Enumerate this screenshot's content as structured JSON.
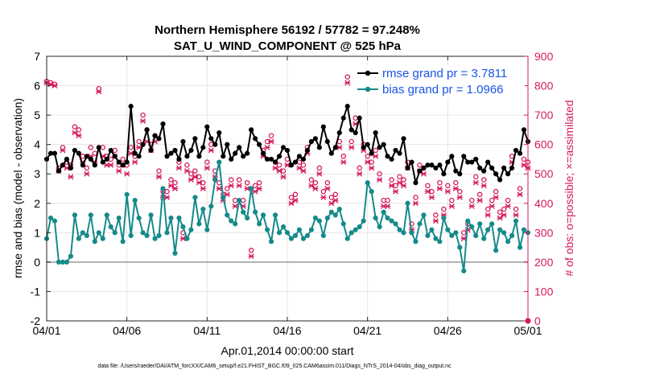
{
  "chart_data": {
    "type": "line",
    "title": "Northern Hemisphere 56192 / 57782 = 97.248%",
    "subtitle": "SAT_U_WIND_COMPONENT @ 525 hPa",
    "xlabel": "Apr.01,2014 00:00:00 start",
    "ylabel": "rmse and bias (model - observation)",
    "ylabel_right": "# of obs: o=possible; ×=assimilated",
    "footnote": "data file: /Users/raeder/DAI/ATM_forcXX/CAM6_setup/f.e21.FHIST_BGC.f09_025.CAM6assim.011/Diags_NTrS_2014-04/obs_diag_output.nc",
    "xlim": [
      0,
      30
    ],
    "ylim": [
      -2,
      7
    ],
    "ylim_right": [
      0,
      900
    ],
    "x_ticks": [
      0,
      5,
      10,
      15,
      20,
      25,
      30
    ],
    "x_tick_labels": [
      "04/01",
      "04/06",
      "04/11",
      "04/16",
      "04/21",
      "04/26",
      "05/01"
    ],
    "y_ticks": [
      -2,
      -1,
      0,
      1,
      2,
      3,
      4,
      5,
      6,
      7
    ],
    "y_tick_labels": [
      "-2",
      "-1",
      "0",
      "1",
      "2",
      "3",
      "4",
      "5",
      "6",
      "7"
    ],
    "y_ticks_right": [
      0,
      100,
      200,
      300,
      400,
      500,
      600,
      700,
      800,
      900
    ],
    "y_tick_labels_right": [
      "0",
      "100",
      "200",
      "300",
      "400",
      "500",
      "600",
      "700",
      "800",
      "900"
    ],
    "grid": true,
    "legend_position": "top-right",
    "colors": {
      "rmse": "#000000",
      "bias": "#168a8a",
      "obs": "#d6195e",
      "zero_line": "#b0b0b0",
      "legend_text": "#1a54e6"
    },
    "x": [
      0.0,
      0.25,
      0.5,
      0.75,
      1.0,
      1.25,
      1.5,
      1.75,
      2.0,
      2.25,
      2.5,
      2.75,
      3.0,
      3.25,
      3.5,
      3.75,
      4.0,
      4.25,
      4.5,
      4.75,
      5.0,
      5.25,
      5.5,
      5.75,
      6.0,
      6.25,
      6.5,
      6.75,
      7.0,
      7.25,
      7.5,
      7.75,
      8.0,
      8.25,
      8.5,
      8.75,
      9.0,
      9.25,
      9.5,
      9.75,
      10.0,
      10.25,
      10.5,
      10.75,
      11.0,
      11.25,
      11.5,
      11.75,
      12.0,
      12.25,
      12.5,
      12.75,
      13.0,
      13.25,
      13.5,
      13.75,
      14.0,
      14.25,
      14.5,
      14.75,
      15.0,
      15.25,
      15.5,
      15.75,
      16.0,
      16.25,
      16.5,
      16.75,
      17.0,
      17.25,
      17.5,
      17.75,
      18.0,
      18.25,
      18.5,
      18.75,
      19.0,
      19.25,
      19.5,
      19.75,
      20.0,
      20.25,
      20.5,
      20.75,
      21.0,
      21.25,
      21.5,
      21.75,
      22.0,
      22.25,
      22.5,
      22.75,
      23.0,
      23.25,
      23.5,
      23.75,
      24.0,
      24.25,
      24.5,
      24.75,
      25.0,
      25.25,
      25.5,
      25.75,
      26.0,
      26.25,
      26.5,
      26.75,
      27.0,
      27.25,
      27.5,
      27.75,
      28.0,
      28.25,
      28.5,
      28.75,
      29.0,
      29.25,
      29.5,
      29.75,
      30.0
    ],
    "series": [
      {
        "name": "rmse grand pr = 3.7811",
        "marker": "circle",
        "values": [
          3.5,
          3.7,
          3.7,
          3.1,
          3.3,
          3.5,
          3.2,
          3.8,
          3.7,
          3.3,
          3.6,
          3.5,
          3.3,
          3.9,
          3.4,
          3.5,
          3.8,
          3.6,
          3.4,
          3.3,
          3.4,
          5.3,
          3.7,
          3.6,
          4.0,
          4.5,
          3.8,
          4.3,
          4.2,
          4.7,
          3.6,
          3.7,
          3.8,
          3.5,
          4.1,
          3.6,
          3.8,
          4.2,
          3.6,
          3.9,
          4.6,
          4.2,
          4.0,
          4.4,
          3.6,
          4.0,
          3.5,
          3.7,
          3.9,
          3.6,
          3.7,
          4.5,
          4.2,
          4.0,
          3.7,
          3.5,
          3.5,
          3.4,
          3.6,
          3.9,
          3.8,
          3.3,
          3.4,
          3.6,
          3.5,
          3.8,
          4.1,
          4.2,
          3.9,
          4.6,
          4.1,
          3.7,
          3.9,
          4.4,
          4.9,
          5.3,
          4.5,
          4.4,
          4.9,
          3.9,
          4.0,
          3.7,
          4.4,
          3.9,
          4.0,
          3.6,
          3.5,
          3.8,
          3.7,
          4.2,
          3.2,
          3.4,
          2.7,
          3.1,
          3.2,
          3.3,
          3.3,
          3.2,
          3.3,
          3.0,
          3.4,
          3.6,
          3.1,
          3.0,
          3.6,
          3.4,
          3.4,
          3.5,
          3.2,
          3.1,
          3.4,
          3.2,
          3.0,
          2.8,
          3.2,
          3.0,
          3.2,
          3.8,
          3.7,
          4.5,
          4.1
        ]
      },
      {
        "name": "bias grand pr = 1.0966",
        "marker": "circle",
        "values": [
          0.8,
          1.5,
          1.4,
          0.0,
          0.0,
          0.0,
          0.2,
          1.6,
          0.8,
          1.0,
          0.9,
          1.6,
          0.7,
          1.0,
          0.8,
          1.6,
          1.2,
          1.0,
          1.5,
          0.7,
          2.3,
          0.9,
          2.1,
          1.5,
          1.0,
          0.9,
          1.6,
          0.8,
          0.9,
          2.5,
          1.0,
          1.5,
          0.3,
          1.5,
          1.2,
          0.8,
          1.1,
          2.2,
          1.3,
          1.8,
          1.1,
          1.9,
          2.8,
          3.4,
          2.2,
          1.6,
          1.4,
          1.3,
          2.1,
          1.7,
          1.5,
          2.5,
          1.7,
          1.3,
          1.6,
          1.1,
          0.7,
          1.6,
          1.0,
          1.2,
          1.0,
          0.8,
          0.9,
          1.1,
          0.8,
          0.9,
          1.1,
          1.5,
          1.4,
          0.9,
          1.5,
          1.7,
          1.6,
          1.8,
          1.3,
          0.8,
          1.0,
          1.1,
          1.2,
          1.4,
          2.7,
          2.4,
          1.5,
          1.2,
          1.7,
          1.5,
          1.4,
          1.3,
          1.1,
          1.0,
          2.0,
          1.0,
          0.7,
          1.3,
          1.6,
          0.9,
          1.1,
          0.8,
          0.7,
          1.5,
          1.1,
          0.9,
          1.0,
          0.5,
          -0.3,
          1.4,
          1.2,
          0.9,
          1.3,
          0.8,
          1.1,
          1.3,
          0.4,
          1.1,
          1.0,
          0.7,
          0.9,
          1.4,
          0.5,
          1.1,
          1.0
        ]
      },
      {
        "name": "possible",
        "axis": "right",
        "marker": "o",
        "values": [
          815,
          810,
          805,
          520,
          590,
          540,
          530,
          660,
          650,
          560,
          520,
          590,
          570,
          790,
          590,
          560,
          550,
          580,
          530,
          550,
          530,
          590,
          560,
          610,
          700,
          650,
          600,
          630,
          510,
          440,
          440,
          480,
          470,
          540,
          300,
          530,
          500,
          510,
          490,
          470,
          540,
          600,
          510,
          470,
          430,
          450,
          480,
          410,
          480,
          410,
          470,
          240,
          460,
          470,
          580,
          610,
          630,
          540,
          530,
          510,
          550,
          420,
          430,
          540,
          530,
          590,
          480,
          470,
          520,
          440,
          470,
          420,
          430,
          610,
          560,
          830,
          610,
          690,
          520,
          600,
          560,
          540,
          580,
          500,
          410,
          410,
          480,
          460,
          490,
          480,
          540,
          330,
          420,
          530,
          520,
          460,
          440,
          360,
          470,
          380,
          460,
          410,
          470,
          440,
          300,
          330,
          410,
          490,
          430,
          480,
          380,
          410,
          440,
          370,
          380,
          410,
          560,
          380,
          450,
          550,
          540
        ]
      },
      {
        "name": "assimilated",
        "axis": "right",
        "marker": "x",
        "values": [
          810,
          805,
          800,
          510,
          580,
          520,
          490,
          640,
          630,
          540,
          500,
          560,
          540,
          780,
          560,
          530,
          530,
          560,
          510,
          530,
          500,
          570,
          540,
          590,
          680,
          610,
          580,
          610,
          490,
          420,
          420,
          460,
          450,
          520,
          280,
          510,
          480,
          490,
          470,
          450,
          520,
          580,
          490,
          450,
          410,
          430,
          460,
          390,
          460,
          390,
          450,
          220,
          440,
          450,
          560,
          590,
          610,
          520,
          510,
          490,
          530,
          400,
          410,
          520,
          510,
          570,
          460,
          450,
          500,
          420,
          450,
          400,
          410,
          590,
          540,
          810,
          590,
          670,
          500,
          580,
          540,
          520,
          560,
          480,
          390,
          390,
          460,
          440,
          470,
          460,
          520,
          310,
          400,
          510,
          500,
          440,
          420,
          340,
          450,
          360,
          440,
          390,
          450,
          420,
          280,
          310,
          390,
          470,
          410,
          460,
          360,
          390,
          420,
          350,
          360,
          390,
          540,
          360,
          430,
          530,
          520
        ]
      }
    ]
  }
}
